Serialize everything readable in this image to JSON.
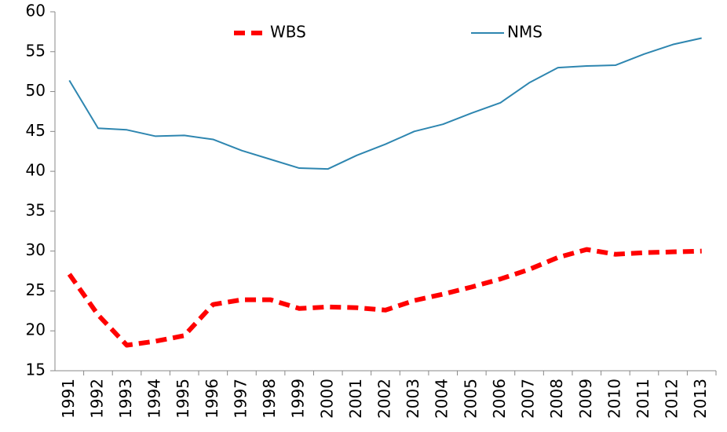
{
  "chart_data": {
    "type": "line",
    "categories": [
      "1991",
      "1992",
      "1993",
      "1994",
      "1995",
      "1996",
      "1997",
      "1998",
      "1999",
      "2000",
      "2001",
      "2002",
      "2003",
      "2004",
      "2005",
      "2006",
      "2007",
      "2008",
      "2009",
      "2010",
      "2011",
      "2012",
      "2013"
    ],
    "series": [
      {
        "name": "WBS",
        "color": "#ff0000",
        "line_style": "dashed",
        "values": [
          27.1,
          22.0,
          18.2,
          18.7,
          19.4,
          23.3,
          23.9,
          23.9,
          22.8,
          23.0,
          22.9,
          22.6,
          23.8,
          24.6,
          25.5,
          26.5,
          27.7,
          29.2,
          30.2,
          29.6,
          29.8,
          29.9,
          30.0
        ]
      },
      {
        "name": "NMS",
        "color": "#2e86b0",
        "line_style": "solid",
        "values": [
          51.4,
          45.4,
          45.2,
          44.4,
          44.5,
          44.0,
          42.6,
          41.5,
          40.4,
          40.3,
          42.0,
          43.4,
          45.0,
          45.9,
          47.3,
          48.6,
          51.1,
          53.0,
          53.2,
          53.3,
          54.7,
          55.9,
          56.7
        ]
      }
    ],
    "ylim": [
      15,
      60
    ],
    "yticks": [
      15,
      20,
      25,
      30,
      35,
      40,
      45,
      50,
      55,
      60
    ],
    "grid": false,
    "legend": "top"
  }
}
